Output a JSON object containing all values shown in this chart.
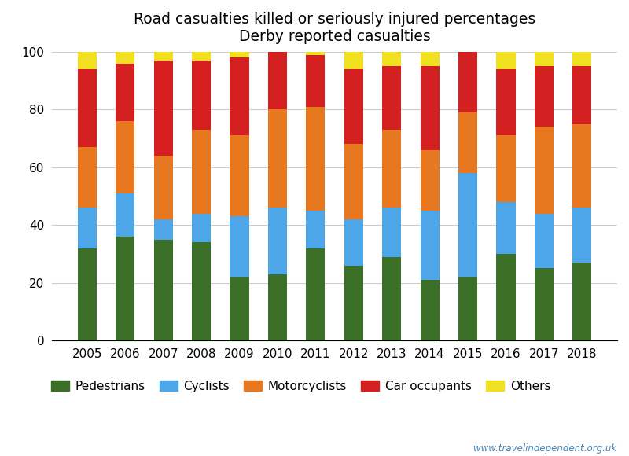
{
  "years": [
    2005,
    2006,
    2007,
    2008,
    2009,
    2010,
    2011,
    2012,
    2013,
    2014,
    2015,
    2016,
    2017,
    2018
  ],
  "pedestrians": [
    32,
    36,
    35,
    34,
    22,
    23,
    32,
    26,
    29,
    21,
    22,
    30,
    25,
    27
  ],
  "cyclists": [
    14,
    15,
    7,
    10,
    21,
    23,
    13,
    16,
    17,
    24,
    36,
    18,
    19,
    19
  ],
  "motorcyclists": [
    21,
    25,
    22,
    29,
    28,
    34,
    36,
    26,
    27,
    21,
    21,
    23,
    30,
    29
  ],
  "car_occupants": [
    27,
    20,
    33,
    24,
    27,
    20,
    18,
    26,
    22,
    29,
    21,
    23,
    21,
    20
  ],
  "others": [
    6,
    4,
    3,
    3,
    2,
    0,
    1,
    6,
    5,
    5,
    0,
    6,
    5,
    5
  ],
  "colors": {
    "pedestrians": "#3b6e27",
    "cyclists": "#4da6e8",
    "motorcyclists": "#e87820",
    "car_occupants": "#d42020",
    "others": "#f0e020"
  },
  "title_line1": "Road casualties killed or seriously injured percentages",
  "title_line2": "Derby reported casualties",
  "ylim": [
    0,
    100
  ],
  "watermark": "www.travelindependent.org.uk"
}
